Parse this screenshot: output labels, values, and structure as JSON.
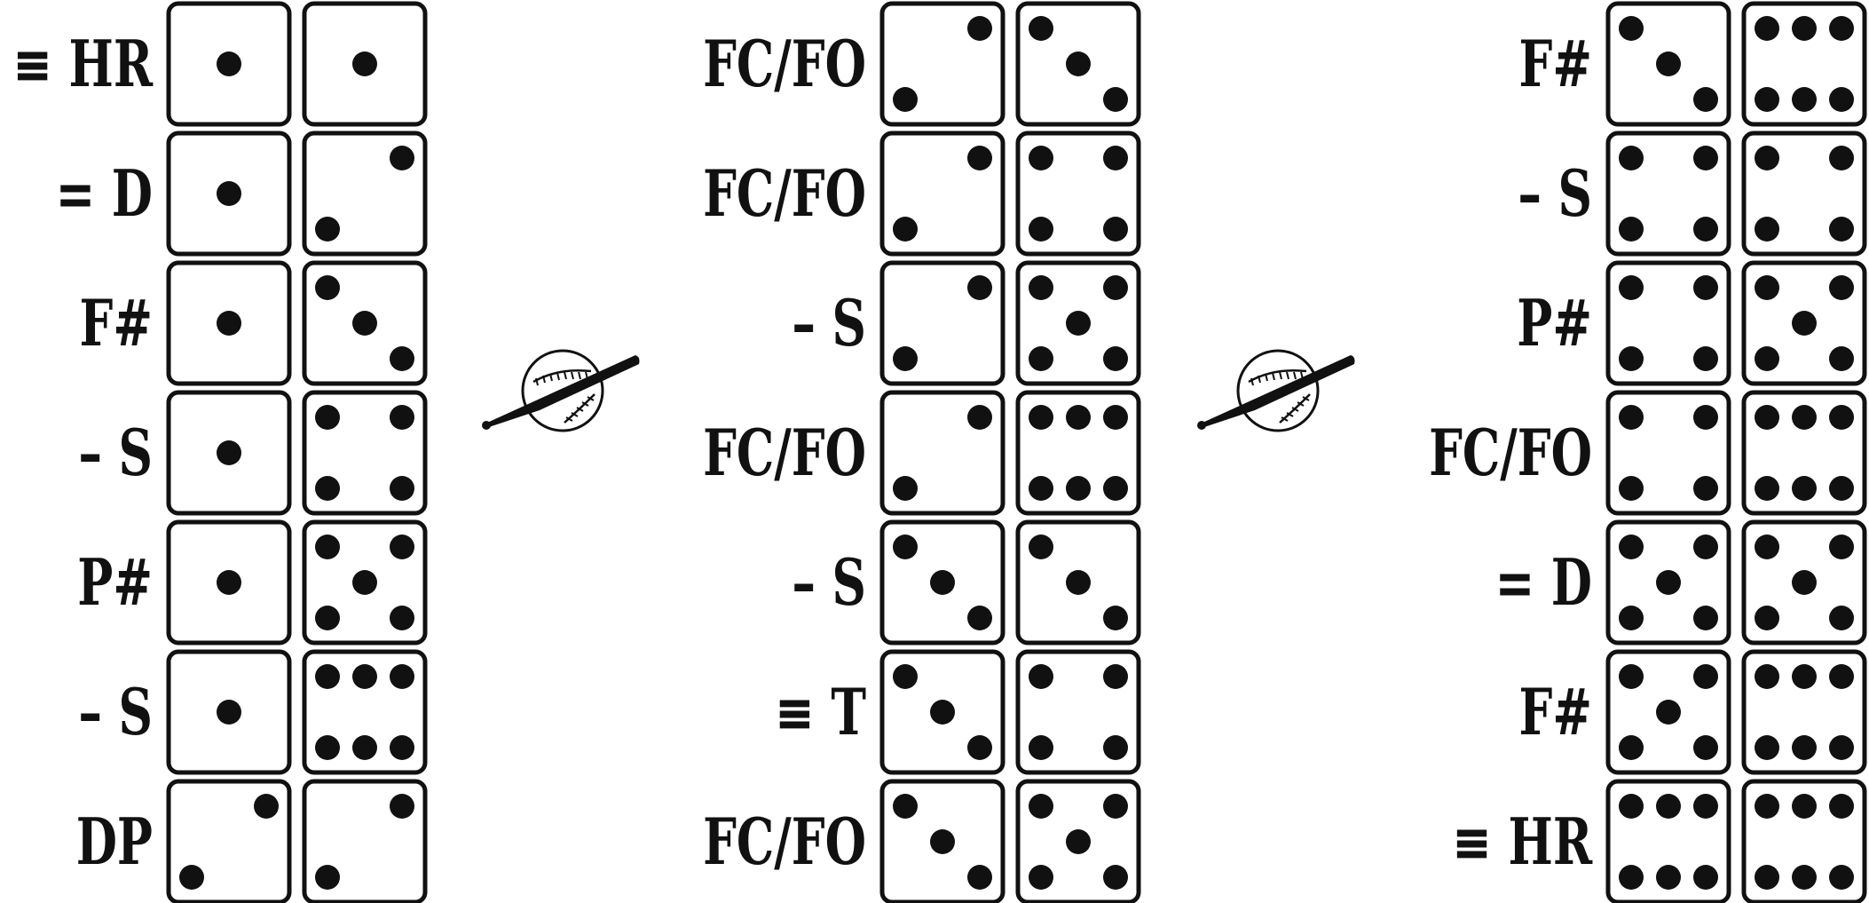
{
  "columns": [
    {
      "rows": [
        {
          "label": "≡ HR",
          "dice": [
            1,
            1
          ]
        },
        {
          "label": "= D",
          "dice": [
            1,
            2
          ]
        },
        {
          "label": "F#",
          "dice": [
            1,
            3
          ]
        },
        {
          "label": "– S",
          "dice": [
            1,
            4
          ]
        },
        {
          "label": "P#",
          "dice": [
            1,
            5
          ]
        },
        {
          "label": "– S",
          "dice": [
            1,
            6
          ]
        },
        {
          "label": "DP",
          "dice": [
            2,
            2
          ]
        }
      ]
    },
    {
      "rows": [
        {
          "label": "FC/FO",
          "dice": [
            2,
            3
          ]
        },
        {
          "label": "FC/FO",
          "dice": [
            2,
            4
          ]
        },
        {
          "label": "– S",
          "dice": [
            2,
            5
          ]
        },
        {
          "label": "FC/FO",
          "dice": [
            2,
            6
          ]
        },
        {
          "label": "– S",
          "dice": [
            3,
            3
          ]
        },
        {
          "label": "≡ T",
          "dice": [
            3,
            4
          ]
        },
        {
          "label": "FC/FO",
          "dice": [
            3,
            5
          ]
        }
      ]
    },
    {
      "rows": [
        {
          "label": "F#",
          "dice": [
            3,
            6
          ]
        },
        {
          "label": "– S",
          "dice": [
            4,
            4
          ]
        },
        {
          "label": "P#",
          "dice": [
            4,
            5
          ]
        },
        {
          "label": "FC/FO",
          "dice": [
            4,
            6
          ]
        },
        {
          "label": "= D",
          "dice": [
            5,
            5
          ]
        },
        {
          "label": "F#",
          "dice": [
            5,
            6
          ]
        },
        {
          "label": "≡ HR",
          "dice": [
            6,
            6
          ]
        }
      ]
    }
  ],
  "separator_icon": "baseball-and-bat-icon",
  "colors": {
    "ink": "#111111",
    "background": "#ffffff"
  }
}
